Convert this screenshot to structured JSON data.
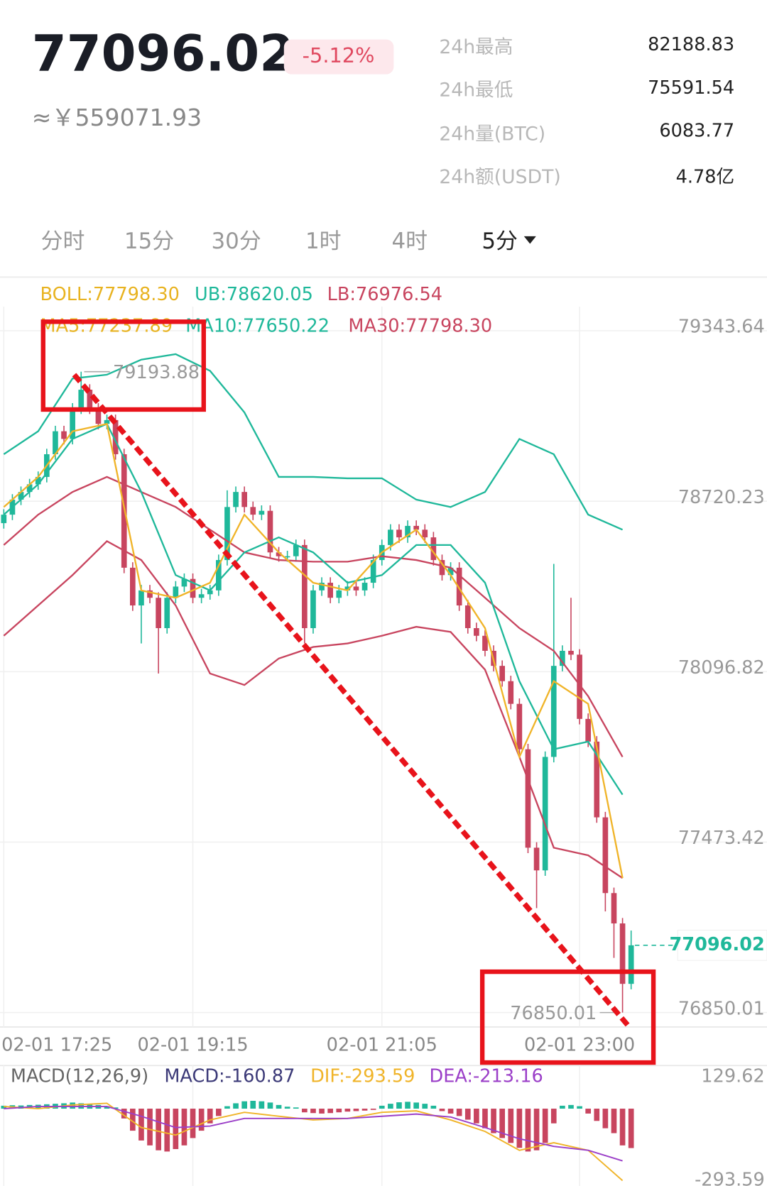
{
  "header": {
    "price": "77096.02",
    "change": "-5.12%",
    "cny": "≈￥559071.93",
    "stats": [
      {
        "label": "24h最高",
        "value": "82188.83"
      },
      {
        "label": "24h最低",
        "value": "75591.54"
      },
      {
        "label": "24h量(BTC)",
        "value": "6083.77"
      },
      {
        "label": "24h额(USDT)",
        "value": "4.78亿"
      }
    ]
  },
  "tabs": [
    "分时",
    "15分",
    "30分",
    "1时",
    "4时",
    "5分"
  ],
  "chart_data": {
    "type": "candlestick",
    "up_color": "#1fb89a",
    "down_color": "#c8455f",
    "ylim": [
      76789,
      79432
    ],
    "yticks": [
      79343.64,
      78720.23,
      78096.82,
      77473.42,
      76850.01
    ],
    "xticks": [
      {
        "value": 0,
        "label": "02-01 17:25"
      },
      {
        "value": 22,
        "label": "02-01 19:15"
      },
      {
        "value": 44,
        "label": "02-01 21:05"
      },
      {
        "value": 67,
        "label": "02-01 23:00"
      }
    ],
    "legend": [
      [
        {
          "label": "BOLL:77798.30",
          "color": "#e8b321"
        },
        {
          "label": "UB:78620.05",
          "color": "#1fb89a"
        },
        {
          "label": "LB:76976.54",
          "color": "#c8455f"
        }
      ],
      [
        {
          "label": "MA5:77237.89",
          "color": "#e8b321"
        },
        {
          "label": "MA10:77650.22",
          "color": "#1fb89a"
        },
        {
          "label": "MA30:77798.30",
          "color": "#c8455f"
        }
      ]
    ],
    "open": [
      78640,
      78671,
      78726,
      78754,
      78782,
      78809,
      78892,
      78976,
      78948,
      79059,
      79128,
      79059,
      79003,
      79017,
      78892,
      78477,
      78339,
      78394,
      78367,
      78256,
      78367,
      78408,
      78436,
      78367,
      78380,
      78394,
      78505,
      78699,
      78754,
      78699,
      78671,
      78685,
      78533,
      78519,
      78519,
      78560,
      78256,
      78394,
      78422,
      78367,
      78394,
      78408,
      78394,
      78422,
      78505,
      78560,
      78616,
      78588,
      78630,
      78616,
      78588,
      78505,
      78450,
      78477,
      78339,
      78256,
      78228,
      78173,
      78118,
      78062,
      77979,
      77813,
      77453,
      77370,
      77785,
      78118,
      78173,
      78159,
      77924,
      77841,
      77564,
      77287,
      77176,
      76955
    ],
    "high": [
      78691,
      78746,
      78774,
      78802,
      78829,
      78912,
      78996,
      78996,
      79079,
      79193.88,
      79148,
      79079,
      79037,
      79037,
      78912,
      78497,
      78414,
      78414,
      78387,
      78387,
      78428,
      78456,
      78456,
      78400,
      78414,
      78525,
      78760,
      78774,
      78774,
      78719,
      78705,
      78705,
      78553,
      78539,
      78580,
      78580,
      78414,
      78442,
      78442,
      78414,
      78428,
      78428,
      78442,
      78525,
      78580,
      78636,
      78636,
      78650,
      78650,
      78636,
      78608,
      78525,
      78497,
      78497,
      78359,
      78276,
      78248,
      78193,
      78138,
      78082,
      77999,
      77833,
      77473,
      77805,
      78491,
      78193,
      78367,
      78179,
      77944,
      77861,
      77584,
      77307,
      77196,
      77150
    ],
    "low": [
      78620,
      78651,
      78706,
      78734,
      78762,
      78789,
      78872,
      78928,
      78928,
      79039,
      79039,
      78983,
      78983,
      78872,
      78457,
      78319,
      78200,
      78347,
      78090,
      78236,
      78347,
      78388,
      78347,
      78347,
      78360,
      78374,
      78485,
      78679,
      78679,
      78651,
      78651,
      78513,
      78499,
      78499,
      78499,
      78200,
      78236,
      78374,
      78347,
      78347,
      78374,
      78374,
      78374,
      78402,
      78485,
      78540,
      78568,
      78568,
      78596,
      78568,
      78485,
      78430,
      78430,
      78319,
      78236,
      78208,
      78153,
      78098,
      78042,
      77959,
      77793,
      77433,
      77232,
      77350,
      77765,
      78098,
      78139,
      77904,
      77821,
      77544,
      77220,
      77050,
      76850.01,
      76935
    ],
    "close": [
      78671,
      78726,
      78754,
      78782,
      78809,
      78892,
      78976,
      78948,
      79059,
      79128,
      79059,
      79003,
      79017,
      78892,
      78477,
      78339,
      78394,
      78367,
      78256,
      78367,
      78408,
      78436,
      78367,
      78380,
      78394,
      78505,
      78699,
      78754,
      78699,
      78671,
      78685,
      78533,
      78519,
      78519,
      78560,
      78256,
      78394,
      78422,
      78367,
      78394,
      78408,
      78394,
      78422,
      78505,
      78560,
      78616,
      78588,
      78630,
      78616,
      78588,
      78505,
      78450,
      78477,
      78339,
      78256,
      78228,
      78173,
      78118,
      78062,
      77979,
      77813,
      77453,
      77370,
      77785,
      78118,
      78173,
      78159,
      77924,
      77841,
      77564,
      77287,
      77176,
      76955,
      77096.02
    ],
    "line_x": [
      0,
      4,
      8,
      12,
      16,
      20,
      24,
      28,
      32,
      36,
      40,
      44,
      48,
      52,
      56,
      60,
      64,
      68,
      72
    ],
    "series": [
      {
        "color": "#1fb89a",
        "values": [
          78892,
          78976,
          79169,
          79183,
          79238,
          79258,
          79197,
          79045,
          78809,
          78809,
          78804,
          78804,
          78726,
          78699,
          78754,
          78948,
          78892,
          78671,
          78616
        ]
      },
      {
        "color": "#c8455f",
        "values": [
          78228,
          78339,
          78450,
          78574,
          78505,
          78339,
          78090,
          78048,
          78145,
          78187,
          78200,
          78228,
          78261,
          78242,
          78104,
          77785,
          77453,
          77425,
          77342
        ]
      },
      {
        "color": "#c8455f",
        "values": [
          78560,
          78671,
          78754,
          78809,
          78754,
          78699,
          78616,
          78533,
          78505,
          78499,
          78499,
          78519,
          78505,
          78477,
          78367,
          78256,
          78173,
          78007,
          77785
        ]
      },
      {
        "color": "#1fb89a",
        "values": [
          78671,
          78782,
          78948,
          79003,
          78754,
          78450,
          78394,
          78533,
          78588,
          78533,
          78422,
          78450,
          78560,
          78560,
          78422,
          78062,
          77813,
          77841,
          77647
        ]
      },
      {
        "color": "#f0b429",
        "values": [
          78699,
          78809,
          78976,
          79003,
          78394,
          78367,
          78422,
          78671,
          78533,
          78422,
          78394,
          78533,
          78616,
          78450,
          78256,
          77785,
          78062,
          77979,
          77342
        ]
      }
    ],
    "macd": {
      "legend": [
        {
          "label": "MACD(12,26,9)",
          "color": "#666666"
        },
        {
          "label": "MACD:-160.87",
          "color": "#3c3a78"
        },
        {
          "label": "DIF:-293.59",
          "color": "#f0b429"
        },
        {
          "label": "DEA:-213.16",
          "color": "#9b3fc8"
        }
      ],
      "ylim": [
        -293.59,
        129.62
      ],
      "yticks": [
        129.62,
        -293.59
      ],
      "hist": [
        12,
        14,
        13,
        15,
        16,
        18,
        20,
        22,
        25,
        22,
        18,
        15,
        10,
        5,
        -40,
        -90,
        -130,
        -150,
        -170,
        -175,
        -165,
        -150,
        -120,
        -90,
        -60,
        -30,
        10,
        22,
        30,
        32,
        30,
        25,
        15,
        8,
        5,
        -15,
        -18,
        -20,
        -18,
        -15,
        -12,
        -10,
        -8,
        -5,
        12,
        20,
        26,
        28,
        25,
        20,
        12,
        -10,
        -20,
        -30,
        -45,
        -60,
        -80,
        -100,
        -120,
        -140,
        -160,
        -175,
        -170,
        -140,
        -60,
        12,
        15,
        10,
        -20,
        -50,
        -80,
        -100,
        -150,
        -160.87
      ],
      "dif": {
        "color": "#f0b429",
        "values": [
          9,
          0,
          15,
          22,
          -77,
          -108,
          -46,
          -15,
          -31,
          -46,
          -40,
          -15,
          -9,
          -46,
          -93,
          -170,
          -139,
          -170,
          -293.59
        ]
      },
      "dea": {
        "color": "#9b3fc8",
        "values": [
          0,
          9,
          9,
          9,
          -31,
          -77,
          -71,
          -40,
          -40,
          -40,
          -40,
          -31,
          -22,
          -34,
          -77,
          -123,
          -154,
          -170,
          -213.16
        ]
      }
    }
  }
}
